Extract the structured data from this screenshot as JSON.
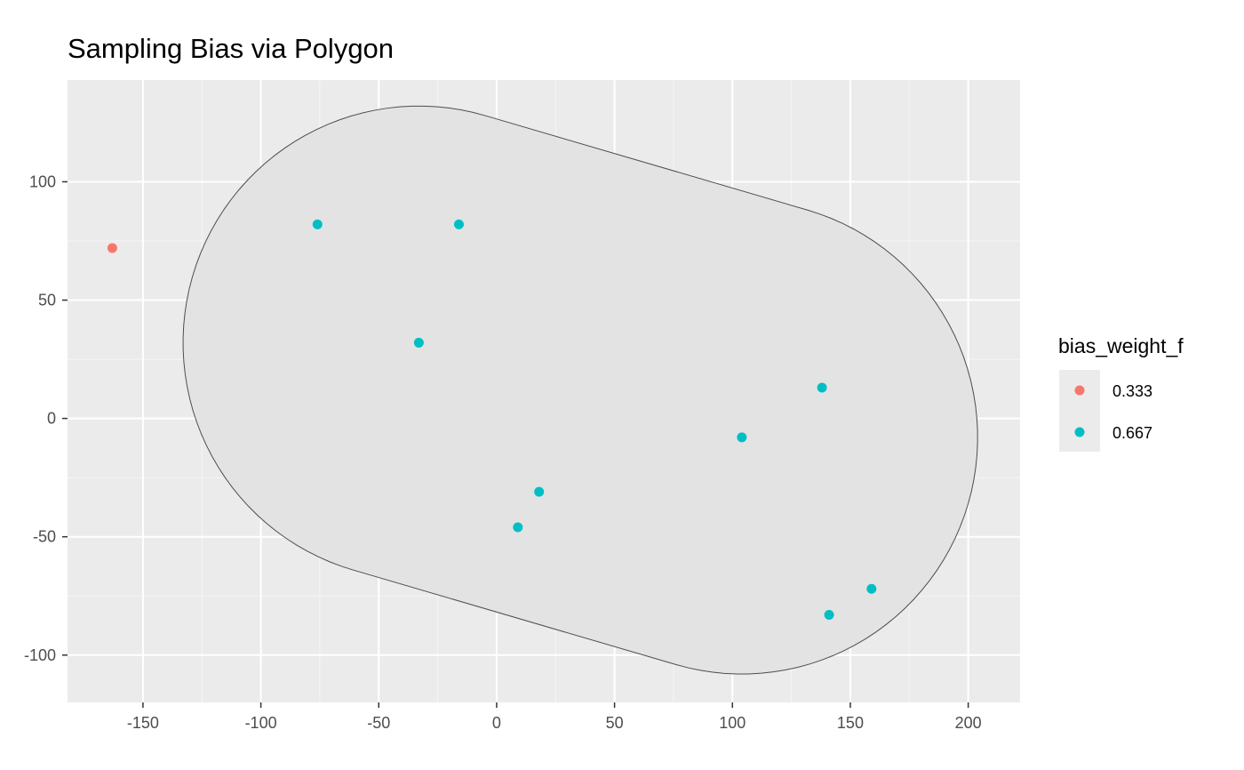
{
  "chart_data": {
    "type": "scatter",
    "title": "Sampling Bias via Polygon",
    "xlabel": "",
    "ylabel": "",
    "xlim": [
      -182,
      222
    ],
    "ylim": [
      -120,
      143
    ],
    "x_ticks": [
      -150,
      -100,
      -50,
      0,
      50,
      100,
      150,
      200
    ],
    "y_ticks": [
      100,
      50,
      0,
      -50,
      -100
    ],
    "x_tick_labels": [
      "-150",
      "-100",
      "-50",
      "0",
      "50",
      "100",
      "150",
      "200"
    ],
    "y_tick_labels": [
      "100",
      "50",
      "0",
      "-50",
      "-100"
    ],
    "grid": true,
    "legend": {
      "title": "bias_weight_f",
      "position": "right",
      "entries": [
        {
          "label": "0.333",
          "color": "#F8766D"
        },
        {
          "label": "0.667",
          "color": "#00BFC4"
        }
      ]
    },
    "series": [
      {
        "name": "0.333",
        "color": "#F8766D",
        "points": [
          [
            -163,
            72
          ]
        ]
      },
      {
        "name": "0.667",
        "color": "#00BFC4",
        "points": [
          [
            -76,
            82
          ],
          [
            -16,
            82
          ],
          [
            -33,
            32
          ],
          [
            138,
            13
          ],
          [
            104,
            -8
          ],
          [
            18,
            -31
          ],
          [
            9,
            -46
          ],
          [
            159,
            -72
          ],
          [
            141,
            -83
          ]
        ]
      }
    ],
    "polygon": {
      "description_hidden": true,
      "fill": "#E3E3E3",
      "stroke": "#4d4d4d",
      "shape": "stadium",
      "segment_start": [
        -33,
        32
      ],
      "segment_end": [
        104,
        -8
      ],
      "radius": 100
    },
    "colors": {
      "panel_background": "#EBEBEB",
      "grid": "#FFFFFF"
    }
  }
}
